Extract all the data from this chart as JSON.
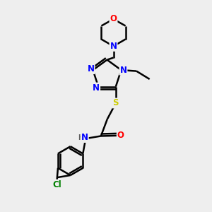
{
  "bg_color": "#eeeeee",
  "atom_colors": {
    "N": "#0000ff",
    "O": "#ff0000",
    "S": "#cccc00",
    "C": "#000000",
    "H": "#606060",
    "Cl": "#008000"
  },
  "bond_color": "#000000",
  "title": ""
}
